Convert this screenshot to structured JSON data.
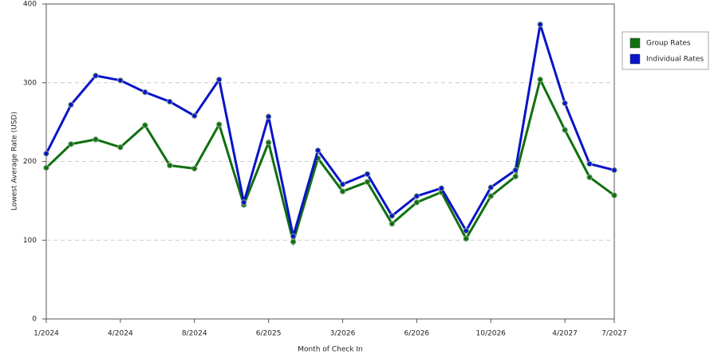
{
  "chart_data": {
    "type": "line",
    "x_label": "Month of Check In",
    "y_label": "Lowest Average Rate (USD)",
    "categories": [
      "1/2024",
      null,
      null,
      "4/2024",
      null,
      null,
      "8/2024",
      null,
      null,
      "6/2025",
      null,
      null,
      "3/2026",
      null,
      null,
      "6/2026",
      null,
      null,
      "10/2026",
      null,
      null,
      "4/2027",
      null,
      "7/2027"
    ],
    "series": [
      {
        "name": "Group Rates",
        "color": "#107010",
        "values": [
          192,
          222,
          228,
          218,
          246,
          195,
          191,
          247,
          145,
          224,
          98,
          204,
          162,
          174,
          121,
          148,
          161,
          102,
          156,
          181,
          304,
          240,
          180,
          157
        ]
      },
      {
        "name": "Individual Rates",
        "color": "#0a14c8",
        "values": [
          210,
          272,
          309,
          303,
          288,
          276,
          258,
          304,
          148,
          257,
          105,
          214,
          171,
          184,
          131,
          156,
          166,
          112,
          167,
          189,
          374,
          274,
          197,
          189
        ]
      }
    ],
    "ylim": [
      0,
      400
    ],
    "yticks": [
      0,
      100,
      200,
      300,
      400
    ],
    "grid": true,
    "legend": "right"
  }
}
